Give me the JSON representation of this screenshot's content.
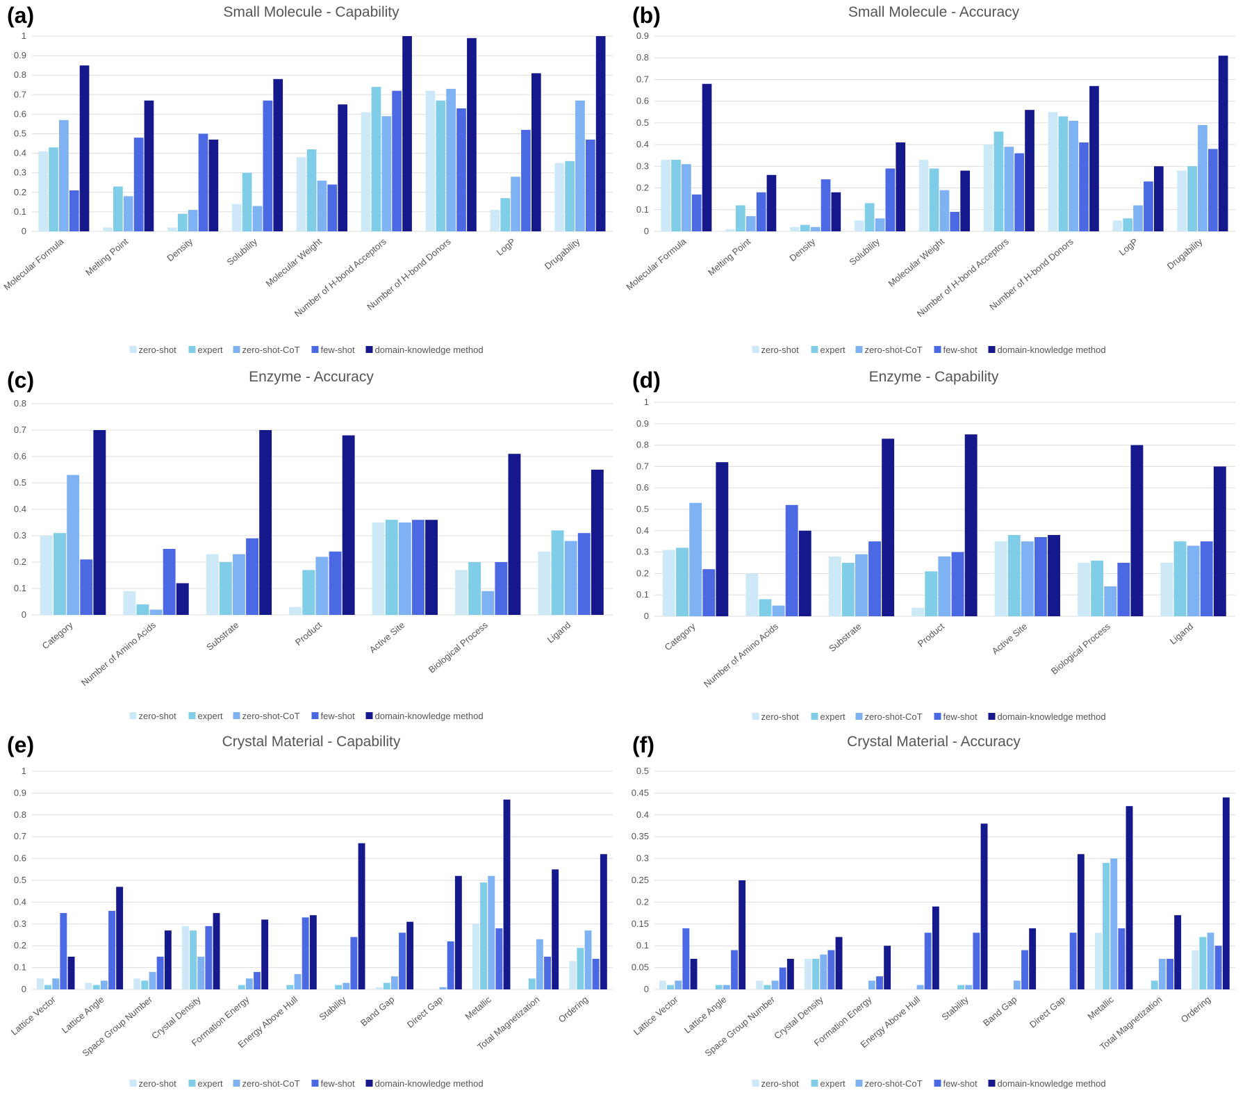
{
  "legend": [
    "zero-shot",
    "expert",
    "zero-shot-CoT",
    "few-shot",
    "domain-knowledge method"
  ],
  "colors": {
    "zero-shot": "#cde9f7",
    "expert": "#7fcde6",
    "zero-shot-CoT": "#7eb2f2",
    "few-shot": "#4c69e4",
    "domain-knowledge method": "#16198c",
    "grid": "#dddddd",
    "text": "#555555"
  },
  "chart_data": [
    {
      "label": "(a)",
      "title": "Small Molecule - Capability",
      "type": "bar",
      "ylim": [
        0,
        1
      ],
      "yticks": [
        "0",
        "0.1",
        "0.2",
        "0.3",
        "0.4",
        "0.5",
        "0.6",
        "0.7",
        "0.8",
        "0.9",
        "1"
      ],
      "categories": [
        "Molecular Formula",
        "Melting Point",
        "Density",
        "Solubility",
        "Molecular Weight",
        "Number of H-bond Acceptors",
        "Number of H-bond Donors",
        "LogP",
        "Drugability"
      ],
      "series": [
        {
          "name": "zero-shot",
          "values": [
            0.41,
            0.02,
            0.02,
            0.14,
            0.38,
            0.61,
            0.72,
            0.11,
            0.35
          ]
        },
        {
          "name": "expert",
          "values": [
            0.43,
            0.23,
            0.09,
            0.3,
            0.42,
            0.74,
            0.67,
            0.17,
            0.36
          ]
        },
        {
          "name": "zero-shot-CoT",
          "values": [
            0.57,
            0.18,
            0.11,
            0.13,
            0.26,
            0.59,
            0.73,
            0.28,
            0.67
          ]
        },
        {
          "name": "few-shot",
          "values": [
            0.21,
            0.48,
            0.5,
            0.67,
            0.24,
            0.72,
            0.63,
            0.52,
            0.47
          ]
        },
        {
          "name": "domain-knowledge method",
          "values": [
            0.85,
            0.67,
            0.47,
            0.78,
            0.65,
            1.0,
            0.99,
            0.81,
            1.0
          ]
        }
      ]
    },
    {
      "label": "(b)",
      "title": "Small Molecule - Accuracy",
      "type": "bar",
      "ylim": [
        0,
        0.9
      ],
      "yticks": [
        "0",
        "0.1",
        "0.2",
        "0.3",
        "0.4",
        "0.5",
        "0.6",
        "0.7",
        "0.8",
        "0.9"
      ],
      "categories": [
        "Molecular Formula",
        "Melting Point",
        "Density",
        "Solubility",
        "Molecular Weight",
        "Number of H-bond Acceptors",
        "Number of H-bond Donors",
        "LogP",
        "Drugability"
      ],
      "series": [
        {
          "name": "zero-shot",
          "values": [
            0.33,
            0.01,
            0.02,
            0.05,
            0.33,
            0.4,
            0.55,
            0.05,
            0.28
          ]
        },
        {
          "name": "expert",
          "values": [
            0.33,
            0.12,
            0.03,
            0.13,
            0.29,
            0.46,
            0.53,
            0.06,
            0.3
          ]
        },
        {
          "name": "zero-shot-CoT",
          "values": [
            0.31,
            0.07,
            0.02,
            0.06,
            0.19,
            0.39,
            0.51,
            0.12,
            0.49
          ]
        },
        {
          "name": "few-shot",
          "values": [
            0.17,
            0.18,
            0.24,
            0.29,
            0.09,
            0.36,
            0.41,
            0.23,
            0.38
          ]
        },
        {
          "name": "domain-knowledge method",
          "values": [
            0.68,
            0.26,
            0.18,
            0.41,
            0.28,
            0.56,
            0.67,
            0.3,
            0.81
          ]
        }
      ]
    },
    {
      "label": "(c)",
      "title": "Enzyme - Accuracy",
      "type": "bar",
      "ylim": [
        0,
        0.8
      ],
      "yticks": [
        "0",
        "0.1",
        "0.2",
        "0.3",
        "0.4",
        "0.5",
        "0.6",
        "0.7",
        "0.8"
      ],
      "categories": [
        "Category",
        "Number of Amino Acids",
        "Substrate",
        "Product",
        "Active Site",
        "Biological Process",
        "Ligand"
      ],
      "series": [
        {
          "name": "zero-shot",
          "values": [
            0.3,
            0.09,
            0.23,
            0.03,
            0.35,
            0.17,
            0.24
          ]
        },
        {
          "name": "expert",
          "values": [
            0.31,
            0.04,
            0.2,
            0.17,
            0.36,
            0.2,
            0.32
          ]
        },
        {
          "name": "zero-shot-CoT",
          "values": [
            0.53,
            0.02,
            0.23,
            0.22,
            0.35,
            0.09,
            0.28
          ]
        },
        {
          "name": "few-shot",
          "values": [
            0.21,
            0.25,
            0.29,
            0.24,
            0.36,
            0.2,
            0.31
          ]
        },
        {
          "name": "domain-knowledge method",
          "values": [
            0.7,
            0.12,
            0.7,
            0.68,
            0.36,
            0.61,
            0.55
          ]
        }
      ]
    },
    {
      "label": "(d)",
      "title": "Enzyme - Capability",
      "type": "bar",
      "ylim": [
        0,
        1
      ],
      "yticks": [
        "0",
        "0.1",
        "0.2",
        "0.3",
        "0.4",
        "0.5",
        "0.6",
        "0.7",
        "0.8",
        "0.9",
        "1"
      ],
      "categories": [
        "Category",
        "Number of Amino Acids",
        "Substrate",
        "Product",
        "Active Site",
        "Biological Process",
        "Ligand"
      ],
      "series": [
        {
          "name": "zero-shot",
          "values": [
            0.31,
            0.2,
            0.28,
            0.04,
            0.35,
            0.25,
            0.25
          ]
        },
        {
          "name": "expert",
          "values": [
            0.32,
            0.08,
            0.25,
            0.21,
            0.38,
            0.26,
            0.35
          ]
        },
        {
          "name": "zero-shot-CoT",
          "values": [
            0.53,
            0.05,
            0.29,
            0.28,
            0.35,
            0.14,
            0.33
          ]
        },
        {
          "name": "few-shot",
          "values": [
            0.22,
            0.52,
            0.35,
            0.3,
            0.37,
            0.25,
            0.35
          ]
        },
        {
          "name": "domain-knowledge method",
          "values": [
            0.72,
            0.4,
            0.83,
            0.85,
            0.38,
            0.8,
            0.7
          ]
        }
      ]
    },
    {
      "label": "(e)",
      "title": "Crystal Material - Capability",
      "type": "bar",
      "ylim": [
        0,
        1
      ],
      "yticks": [
        "0",
        "0.1",
        "0.2",
        "0.3",
        "0.4",
        "0.5",
        "0.6",
        "0.7",
        "0.8",
        "0.9",
        "1"
      ],
      "categories": [
        "Lattice Vector",
        "Lattice Angle",
        "Space Group Number",
        "Crystal Density",
        "Formation Energy",
        "Energy Above Hull",
        "Stability",
        "Band Gap",
        "Direct Gap",
        "Metallic",
        "Total Magnetization",
        "Ordering"
      ],
      "series": [
        {
          "name": "zero-shot",
          "values": [
            0.05,
            0.03,
            0.05,
            0.29,
            0.0,
            0.0,
            0.0,
            0.01,
            0.0,
            0.3,
            0.0,
            0.13
          ]
        },
        {
          "name": "expert",
          "values": [
            0.02,
            0.02,
            0.04,
            0.27,
            0.02,
            0.02,
            0.02,
            0.03,
            0.0,
            0.49,
            0.05,
            0.19
          ]
        },
        {
          "name": "zero-shot-CoT",
          "values": [
            0.05,
            0.04,
            0.08,
            0.15,
            0.05,
            0.07,
            0.03,
            0.06,
            0.01,
            0.52,
            0.23,
            0.27
          ]
        },
        {
          "name": "few-shot",
          "values": [
            0.35,
            0.36,
            0.15,
            0.29,
            0.08,
            0.33,
            0.24,
            0.26,
            0.22,
            0.28,
            0.15,
            0.14
          ]
        },
        {
          "name": "domain-knowledge method",
          "values": [
            0.15,
            0.47,
            0.27,
            0.35,
            0.32,
            0.34,
            0.67,
            0.31,
            0.52,
            0.87,
            0.55,
            0.62
          ]
        }
      ]
    },
    {
      "label": "(f)",
      "title": "Crystal Material - Accuracy",
      "type": "bar",
      "ylim": [
        0,
        0.5
      ],
      "yticks": [
        "0",
        "0.05",
        "0.1",
        "0.15",
        "0.2",
        "0.25",
        "0.3",
        "0.35",
        "0.4",
        "0.45",
        "0.5"
      ],
      "categories": [
        "Lattice Vector",
        "Lattice Angle",
        "Space Group Number",
        "Crystal Density",
        "Formation Energy",
        "Energy Above Hull",
        "Stability",
        "Band Gap",
        "Direct Gap",
        "Metallic",
        "Total Magnetization",
        "Ordering"
      ],
      "series": [
        {
          "name": "zero-shot",
          "values": [
            0.02,
            0.0,
            0.02,
            0.07,
            0.0,
            0.0,
            0.0,
            0.0,
            0.0,
            0.13,
            0.0,
            0.09
          ]
        },
        {
          "name": "expert",
          "values": [
            0.01,
            0.01,
            0.01,
            0.07,
            0.0,
            0.0,
            0.01,
            0.0,
            0.0,
            0.29,
            0.02,
            0.12
          ]
        },
        {
          "name": "zero-shot-CoT",
          "values": [
            0.02,
            0.01,
            0.02,
            0.08,
            0.02,
            0.01,
            0.01,
            0.02,
            0.0,
            0.3,
            0.07,
            0.13
          ]
        },
        {
          "name": "few-shot",
          "values": [
            0.14,
            0.09,
            0.05,
            0.09,
            0.03,
            0.13,
            0.13,
            0.09,
            0.13,
            0.14,
            0.07,
            0.1
          ]
        },
        {
          "name": "domain-knowledge method",
          "values": [
            0.07,
            0.25,
            0.07,
            0.12,
            0.1,
            0.19,
            0.38,
            0.14,
            0.31,
            0.42,
            0.17,
            0.44
          ]
        }
      ]
    }
  ]
}
